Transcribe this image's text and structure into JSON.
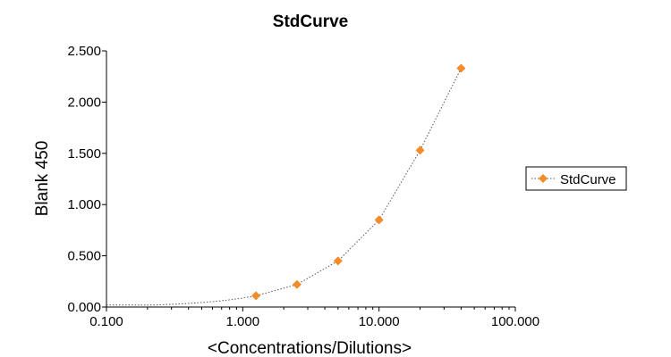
{
  "chart_data": {
    "type": "scatter",
    "title": "StdCurve",
    "xlabel": "<Concentrations/Dilutions>",
    "ylabel": "Blank 450",
    "x_scale": "log",
    "xlim": [
      0.1,
      100
    ],
    "ylim": [
      0,
      2.5
    ],
    "x_ticks": [
      0.1,
      1,
      10,
      100
    ],
    "x_tick_labels": [
      "0.100",
      "1.000",
      "10.000",
      "100.000"
    ],
    "y_ticks": [
      0,
      0.5,
      1,
      1.5,
      2,
      2.5
    ],
    "y_tick_labels": [
      "0.000",
      "0.500",
      "1.000",
      "1.500",
      "2.000",
      "2.500"
    ],
    "grid": false,
    "legend_position": "right",
    "series": [
      {
        "name": "StdCurve",
        "marker": "diamond",
        "color": "#f28c28",
        "x": [
          1.25,
          2.5,
          5,
          10,
          20,
          40
        ],
        "y": [
          0.11,
          0.22,
          0.45,
          0.85,
          1.53,
          2.33
        ]
      }
    ],
    "fit_line": {
      "style": "dotted",
      "color": "#555555"
    }
  }
}
